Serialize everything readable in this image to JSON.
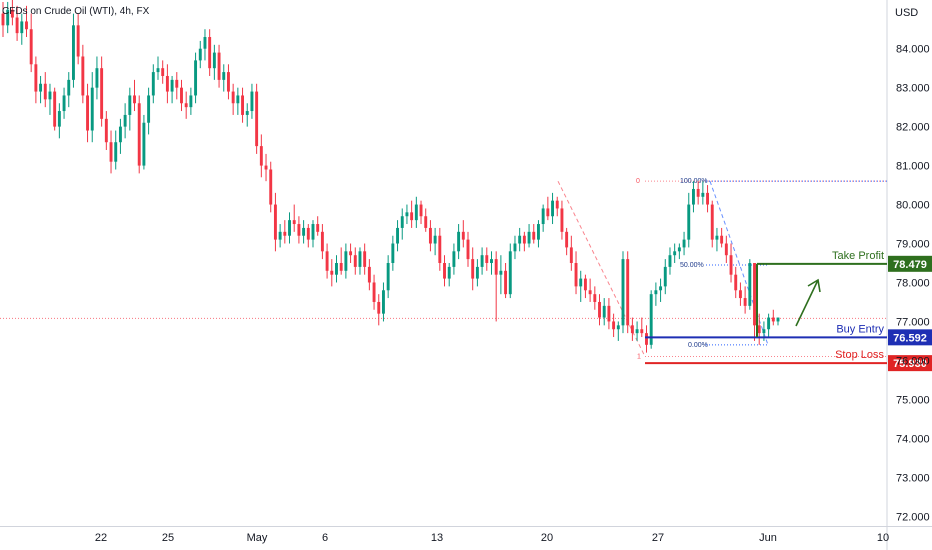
{
  "chart_data": {
    "type": "candlestick",
    "title": "CFDs on Crude Oil (WTI), 4h, FX",
    "currency": "USD",
    "x_tick_labels": [
      "22",
      "25",
      "May",
      "6",
      "13",
      "20",
      "27",
      "Jun",
      "10"
    ],
    "y_tick_labels": [
      "72.000",
      "73.000",
      "74.000",
      "75.000",
      "76.000",
      "77.000",
      "78.000",
      "79.000",
      "80.000",
      "81.000",
      "82.000",
      "83.000",
      "84.000"
    ],
    "ylim": [
      71.75,
      85.25
    ],
    "grid": false,
    "current_price_line": 77.08,
    "levels": [
      {
        "label": "Take Profit",
        "value": 78.479,
        "tag": "78.479",
        "color": "#2e6f1e"
      },
      {
        "label": "Buy Entry",
        "value": 76.592,
        "tag": "76.592",
        "color": "#1e2fb4"
      },
      {
        "label": "Stop Loss",
        "value": 75.93,
        "tag": "75.930",
        "color": "#e02424"
      }
    ],
    "fib_left": [
      {
        "label": "0",
        "value": 80.6
      },
      {
        "label": "1",
        "value": 76.1
      }
    ],
    "fib_right": [
      {
        "label": "100.00%",
        "value": 80.6
      },
      {
        "label": "50.00%",
        "value": 78.45
      },
      {
        "label": "0.00%",
        "value": 76.4
      }
    ],
    "candles": [
      [
        84.9,
        85.2,
        84.3,
        84.6
      ],
      [
        84.6,
        85.2,
        84.4,
        85.0
      ],
      [
        85.0,
        85.3,
        84.6,
        84.8
      ],
      [
        84.8,
        85.1,
        84.2,
        84.4
      ],
      [
        84.4,
        84.9,
        84.1,
        84.7
      ],
      [
        84.7,
        85.1,
        84.3,
        84.5
      ],
      [
        84.5,
        84.9,
        83.4,
        83.6
      ],
      [
        83.6,
        83.8,
        82.6,
        82.9
      ],
      [
        82.9,
        83.3,
        82.6,
        83.1
      ],
      [
        83.1,
        83.4,
        82.5,
        82.7
      ],
      [
        82.7,
        83.1,
        82.3,
        82.9
      ],
      [
        82.9,
        83.0,
        81.9,
        82.0
      ],
      [
        82.0,
        82.6,
        81.7,
        82.4
      ],
      [
        82.4,
        83.0,
        82.2,
        82.8
      ],
      [
        82.8,
        83.4,
        82.5,
        83.2
      ],
      [
        83.2,
        84.9,
        83.0,
        84.6
      ],
      [
        84.6,
        84.9,
        83.6,
        83.8
      ],
      [
        83.8,
        84.1,
        82.6,
        82.8
      ],
      [
        82.8,
        83.1,
        81.6,
        81.9
      ],
      [
        81.9,
        83.4,
        81.6,
        83.0
      ],
      [
        83.0,
        83.8,
        82.7,
        83.5
      ],
      [
        83.5,
        83.8,
        82.0,
        82.2
      ],
      [
        82.2,
        82.4,
        81.4,
        81.6
      ],
      [
        81.6,
        81.9,
        80.8,
        81.1
      ],
      [
        81.1,
        81.9,
        80.9,
        81.6
      ],
      [
        81.6,
        82.2,
        81.3,
        82.0
      ],
      [
        82.0,
        82.6,
        81.7,
        82.3
      ],
      [
        82.3,
        83.0,
        81.9,
        82.8
      ],
      [
        82.8,
        83.2,
        82.4,
        82.6
      ],
      [
        82.6,
        82.8,
        80.8,
        81.0
      ],
      [
        81.0,
        82.3,
        80.9,
        82.1
      ],
      [
        82.1,
        83.0,
        81.8,
        82.8
      ],
      [
        82.8,
        83.6,
        82.6,
        83.4
      ],
      [
        83.4,
        83.8,
        83.2,
        83.5
      ],
      [
        83.5,
        83.7,
        83.1,
        83.3
      ],
      [
        83.3,
        83.6,
        82.6,
        82.9
      ],
      [
        82.9,
        83.3,
        82.6,
        83.2
      ],
      [
        83.2,
        83.4,
        82.7,
        83.0
      ],
      [
        83.0,
        83.2,
        82.4,
        82.6
      ],
      [
        82.6,
        82.9,
        82.2,
        82.5
      ],
      [
        82.5,
        83.0,
        82.3,
        82.8
      ],
      [
        82.8,
        83.9,
        82.6,
        83.7
      ],
      [
        83.7,
        84.2,
        83.5,
        84.0
      ],
      [
        84.0,
        84.5,
        83.7,
        84.3
      ],
      [
        84.3,
        84.5,
        83.3,
        83.5
      ],
      [
        83.5,
        84.1,
        83.2,
        83.9
      ],
      [
        83.9,
        84.1,
        83.0,
        83.2
      ],
      [
        83.2,
        83.6,
        82.9,
        83.4
      ],
      [
        83.4,
        83.6,
        82.7,
        82.9
      ],
      [
        82.9,
        83.1,
        82.3,
        82.6
      ],
      [
        82.6,
        83.0,
        82.3,
        82.8
      ],
      [
        82.8,
        83.0,
        82.1,
        82.3
      ],
      [
        82.3,
        82.6,
        82.0,
        82.4
      ],
      [
        82.4,
        83.1,
        82.2,
        82.9
      ],
      [
        82.9,
        83.1,
        81.3,
        81.5
      ],
      [
        81.5,
        81.8,
        80.7,
        81.0
      ],
      [
        81.0,
        81.3,
        80.6,
        80.9
      ],
      [
        80.9,
        81.1,
        79.8,
        80.0
      ],
      [
        80.0,
        80.3,
        78.8,
        79.1
      ],
      [
        79.1,
        79.5,
        78.9,
        79.3
      ],
      [
        79.3,
        79.6,
        79.0,
        79.2
      ],
      [
        79.2,
        79.8,
        79.0,
        79.6
      ],
      [
        79.6,
        80.0,
        79.3,
        79.5
      ],
      [
        79.5,
        79.7,
        79.0,
        79.2
      ],
      [
        79.2,
        79.6,
        79.0,
        79.4
      ],
      [
        79.4,
        79.5,
        78.9,
        79.1
      ],
      [
        79.1,
        79.6,
        78.9,
        79.5
      ],
      [
        79.5,
        79.7,
        79.2,
        79.3
      ],
      [
        79.3,
        79.5,
        78.6,
        78.8
      ],
      [
        78.8,
        79.0,
        78.1,
        78.3
      ],
      [
        78.3,
        78.6,
        77.9,
        78.2
      ],
      [
        78.2,
        78.7,
        78.0,
        78.5
      ],
      [
        78.5,
        78.9,
        78.2,
        78.3
      ],
      [
        78.3,
        79.0,
        78.1,
        78.8
      ],
      [
        78.8,
        79.0,
        78.5,
        78.7
      ],
      [
        78.7,
        78.9,
        78.2,
        78.4
      ],
      [
        78.4,
        78.9,
        78.2,
        78.8
      ],
      [
        78.8,
        79.0,
        78.2,
        78.4
      ],
      [
        78.4,
        78.6,
        77.8,
        78.0
      ],
      [
        78.0,
        78.2,
        77.3,
        77.5
      ],
      [
        77.5,
        77.7,
        76.9,
        77.2
      ],
      [
        77.2,
        78.0,
        77.0,
        77.8
      ],
      [
        77.8,
        78.7,
        77.6,
        78.5
      ],
      [
        78.5,
        79.2,
        78.3,
        79.0
      ],
      [
        79.0,
        79.6,
        78.8,
        79.4
      ],
      [
        79.4,
        79.9,
        79.1,
        79.7
      ],
      [
        79.7,
        80.0,
        79.5,
        79.8
      ],
      [
        79.8,
        80.1,
        79.4,
        79.6
      ],
      [
        79.6,
        80.2,
        79.4,
        80.0
      ],
      [
        80.0,
        80.1,
        79.5,
        79.7
      ],
      [
        79.7,
        79.9,
        79.3,
        79.4
      ],
      [
        79.4,
        79.6,
        78.8,
        79.0
      ],
      [
        79.0,
        79.4,
        78.7,
        79.2
      ],
      [
        79.2,
        79.4,
        78.3,
        78.5
      ],
      [
        78.5,
        78.7,
        77.9,
        78.1
      ],
      [
        78.1,
        78.5,
        77.9,
        78.4
      ],
      [
        78.4,
        79.0,
        78.2,
        78.8
      ],
      [
        78.8,
        79.5,
        78.6,
        79.3
      ],
      [
        79.3,
        79.6,
        78.9,
        79.1
      ],
      [
        79.1,
        79.3,
        78.4,
        78.6
      ],
      [
        78.6,
        78.9,
        77.8,
        78.1
      ],
      [
        78.1,
        78.6,
        77.9,
        78.4
      ],
      [
        78.4,
        78.9,
        78.2,
        78.7
      ],
      [
        78.7,
        78.9,
        78.3,
        78.5
      ],
      [
        78.5,
        78.8,
        78.2,
        78.6
      ],
      [
        78.6,
        78.8,
        77.0,
        78.2
      ],
      [
        78.2,
        78.7,
        77.7,
        78.3
      ],
      [
        78.3,
        78.5,
        77.6,
        77.7
      ],
      [
        77.7,
        79.0,
        77.6,
        78.8
      ],
      [
        78.8,
        79.2,
        78.6,
        79.0
      ],
      [
        79.0,
        79.4,
        78.8,
        79.2
      ],
      [
        79.2,
        79.3,
        78.8,
        79.0
      ],
      [
        79.0,
        79.5,
        78.9,
        79.3
      ],
      [
        79.3,
        79.5,
        79.0,
        79.1
      ],
      [
        79.1,
        79.6,
        78.9,
        79.5
      ],
      [
        79.5,
        80.0,
        79.3,
        79.9
      ],
      [
        79.9,
        80.2,
        79.6,
        79.7
      ],
      [
        79.7,
        80.3,
        79.5,
        80.1
      ],
      [
        80.1,
        80.2,
        79.7,
        79.9
      ],
      [
        79.9,
        80.1,
        79.1,
        79.3
      ],
      [
        79.3,
        79.4,
        78.7,
        78.9
      ],
      [
        78.9,
        79.2,
        78.3,
        78.5
      ],
      [
        78.5,
        78.8,
        77.7,
        77.9
      ],
      [
        77.9,
        78.3,
        77.5,
        78.1
      ],
      [
        78.1,
        78.2,
        77.6,
        77.8
      ],
      [
        77.8,
        78.1,
        77.5,
        77.7
      ],
      [
        77.7,
        77.9,
        77.3,
        77.5
      ],
      [
        77.5,
        77.7,
        76.9,
        77.1
      ],
      [
        77.1,
        77.6,
        76.9,
        77.4
      ],
      [
        77.4,
        77.6,
        76.8,
        77.0
      ],
      [
        77.0,
        77.2,
        76.6,
        76.8
      ],
      [
        76.8,
        77.0,
        76.5,
        76.9
      ],
      [
        76.9,
        78.8,
        76.7,
        78.6
      ],
      [
        78.6,
        78.8,
        76.7,
        76.9
      ],
      [
        76.9,
        77.1,
        76.5,
        76.7
      ],
      [
        76.7,
        77.0,
        76.5,
        76.8
      ],
      [
        76.8,
        77.1,
        76.6,
        76.7
      ],
      [
        76.7,
        76.9,
        76.2,
        76.4
      ],
      [
        76.4,
        77.8,
        76.3,
        77.7
      ],
      [
        77.7,
        78.0,
        77.4,
        77.8
      ],
      [
        77.8,
        78.1,
        77.5,
        77.9
      ],
      [
        77.9,
        78.6,
        77.7,
        78.4
      ],
      [
        78.4,
        78.9,
        78.2,
        78.7
      ],
      [
        78.7,
        79.0,
        78.5,
        78.8
      ],
      [
        78.8,
        79.0,
        78.6,
        78.9
      ],
      [
        78.9,
        79.3,
        78.7,
        79.1
      ],
      [
        79.1,
        80.3,
        78.9,
        80.0
      ],
      [
        80.0,
        80.6,
        79.8,
        80.4
      ],
      [
        80.4,
        80.6,
        80.0,
        80.2
      ],
      [
        80.2,
        80.6,
        80.0,
        80.3
      ],
      [
        80.3,
        80.5,
        79.8,
        80.0
      ],
      [
        80.0,
        80.1,
        78.9,
        79.1
      ],
      [
        79.1,
        79.4,
        78.8,
        79.2
      ],
      [
        79.2,
        79.4,
        78.9,
        79.0
      ],
      [
        79.0,
        79.2,
        78.5,
        78.7
      ],
      [
        78.7,
        79.0,
        78.0,
        78.2
      ],
      [
        78.2,
        78.4,
        77.6,
        77.8
      ],
      [
        77.8,
        78.0,
        77.4,
        77.6
      ],
      [
        77.6,
        77.9,
        77.2,
        77.4
      ],
      [
        77.4,
        78.6,
        77.3,
        78.5
      ],
      [
        78.5,
        78.5,
        76.5,
        76.9
      ],
      [
        76.9,
        77.2,
        76.4,
        76.7
      ],
      [
        76.7,
        77.0,
        76.5,
        76.8
      ],
      [
        76.8,
        77.2,
        76.6,
        77.1
      ],
      [
        77.1,
        77.3,
        76.9,
        77.0
      ],
      [
        77.0,
        77.1,
        76.9,
        77.1
      ]
    ]
  }
}
